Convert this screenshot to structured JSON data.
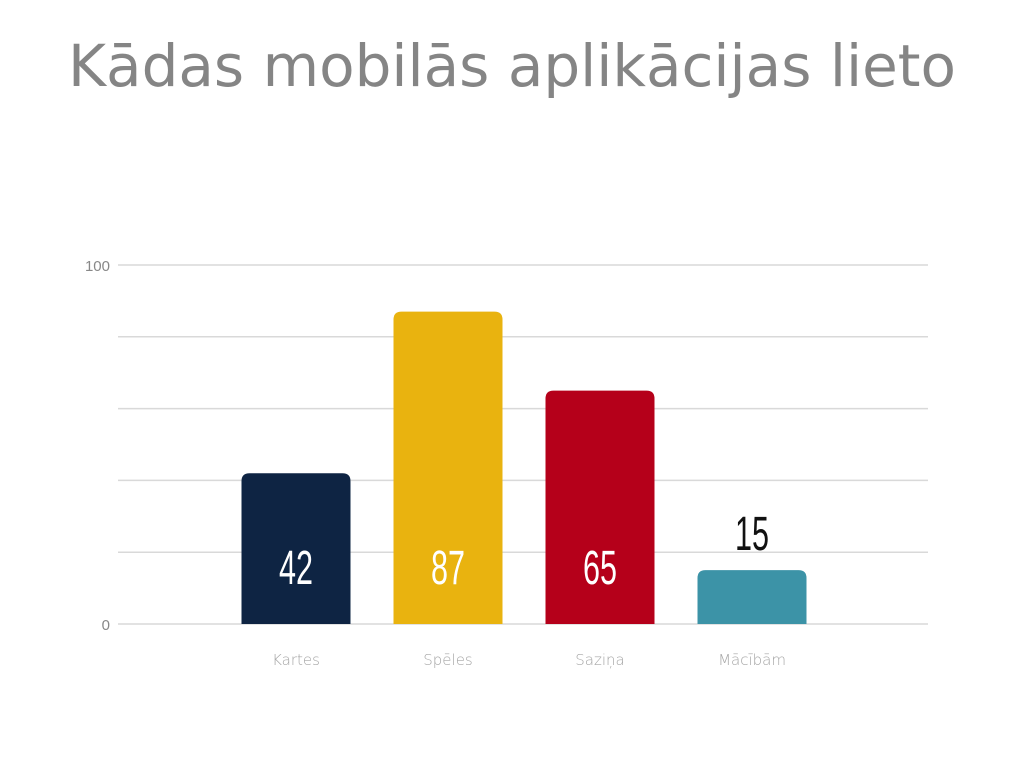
{
  "title": "Kādas mobilās aplikācijas lieto",
  "chart_data": {
    "type": "bar",
    "title": "Kādas mobilās aplikācijas lieto",
    "categories": [
      "Kartes",
      "Spēles",
      "Saziņa",
      "Mācībām"
    ],
    "values": [
      42,
      87,
      65,
      15
    ],
    "colors": [
      "#0e2443",
      "#e9b30f",
      "#b5001a",
      "#3c93a7"
    ],
    "label_colors": [
      "#ffffff",
      "#ffffff",
      "#ffffff",
      "#111111"
    ],
    "ylim": [
      0,
      100
    ],
    "yticks": [
      0,
      100
    ],
    "grid_step": 20,
    "grid": true,
    "xlabel": "",
    "ylabel": ""
  }
}
